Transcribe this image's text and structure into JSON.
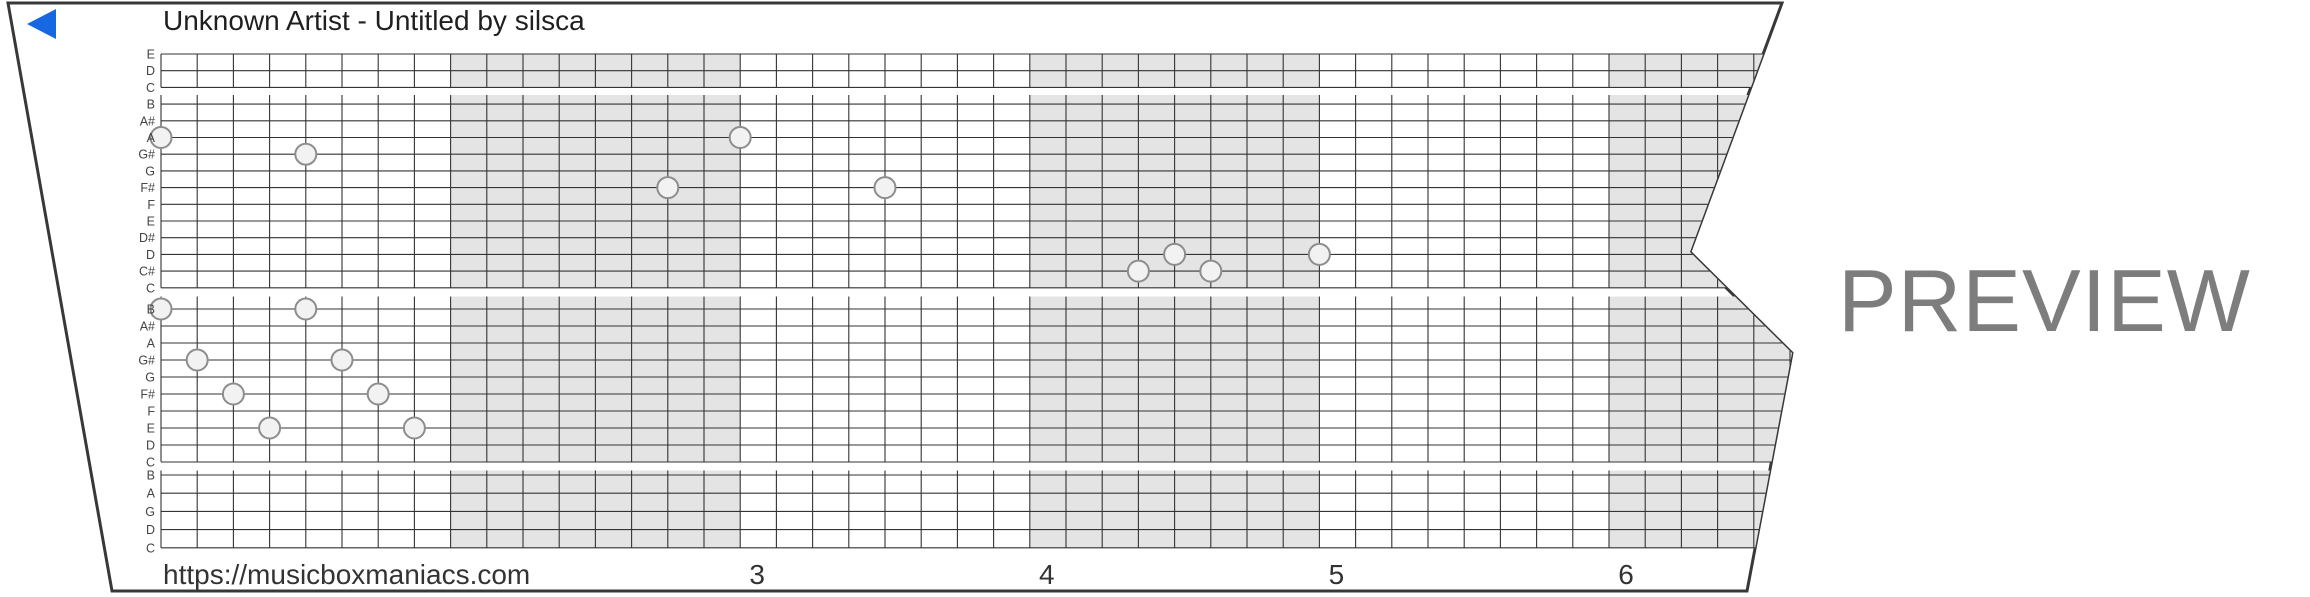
{
  "header": {
    "title": "Unknown Artist - Untitled by silsca"
  },
  "watermark": "PREVIEW",
  "footer": {
    "url": "https://musicboxmaniacs.com",
    "measure_numbers": [
      {
        "label": "3",
        "measure": 3
      },
      {
        "label": "4",
        "measure": 4
      },
      {
        "label": "5",
        "measure": 5
      },
      {
        "label": "6",
        "measure": 6
      }
    ]
  },
  "colors": {
    "accent_blue": "#1767e0",
    "shaded_measure": "#e4e4e4",
    "grid_line": "#333333",
    "strip_outline": "#383838",
    "note_fill": "#f2f2f2",
    "note_stroke": "#8d8d8d",
    "title_text": "#1f1f1f",
    "footer_text": "#333333",
    "row_label_text": "#444444",
    "watermark_gray": "#7d7d7d"
  },
  "strip": {
    "sections": [
      {
        "labels": [
          "E",
          "D",
          "C",
          "B",
          "A#",
          "A",
          "G#",
          "G",
          "F#",
          "F",
          "E",
          "D#",
          "D",
          "C#",
          "C"
        ]
      },
      {
        "labels": [
          "B",
          "A#",
          "A",
          "G#",
          "G",
          "F#",
          "F",
          "E",
          "D",
          "C"
        ]
      },
      {
        "labels": [
          "B",
          "A",
          "G",
          "D",
          "C"
        ]
      }
    ],
    "columns_per_measure": 8,
    "shaded_measures": [
      2,
      4,
      6
    ],
    "notes": [
      {
        "pitch": "A",
        "row": 5,
        "col": 0
      },
      {
        "pitch": "G#",
        "row": 6,
        "col": 4
      },
      {
        "pitch": "F#",
        "row": 8,
        "col": 14
      },
      {
        "pitch": "A",
        "row": 5,
        "col": 16
      },
      {
        "pitch": "F#",
        "row": 8,
        "col": 20
      },
      {
        "pitch": "C#",
        "row": 13,
        "col": 27
      },
      {
        "pitch": "D",
        "row": 12,
        "col": 28
      },
      {
        "pitch": "C#",
        "row": 13,
        "col": 29
      },
      {
        "pitch": "D",
        "row": 12,
        "col": 32
      },
      {
        "pitch": "B",
        "row": 15,
        "col": 0
      },
      {
        "pitch": "B",
        "row": 15,
        "col": 4
      },
      {
        "pitch": "G#",
        "row": 18,
        "col": 1
      },
      {
        "pitch": "G#",
        "row": 18,
        "col": 5
      },
      {
        "pitch": "F#",
        "row": 20,
        "col": 2
      },
      {
        "pitch": "F#",
        "row": 20,
        "col": 6
      },
      {
        "pitch": "E",
        "row": 22,
        "col": 3
      },
      {
        "pitch": "E",
        "row": 22,
        "col": 7
      }
    ]
  }
}
